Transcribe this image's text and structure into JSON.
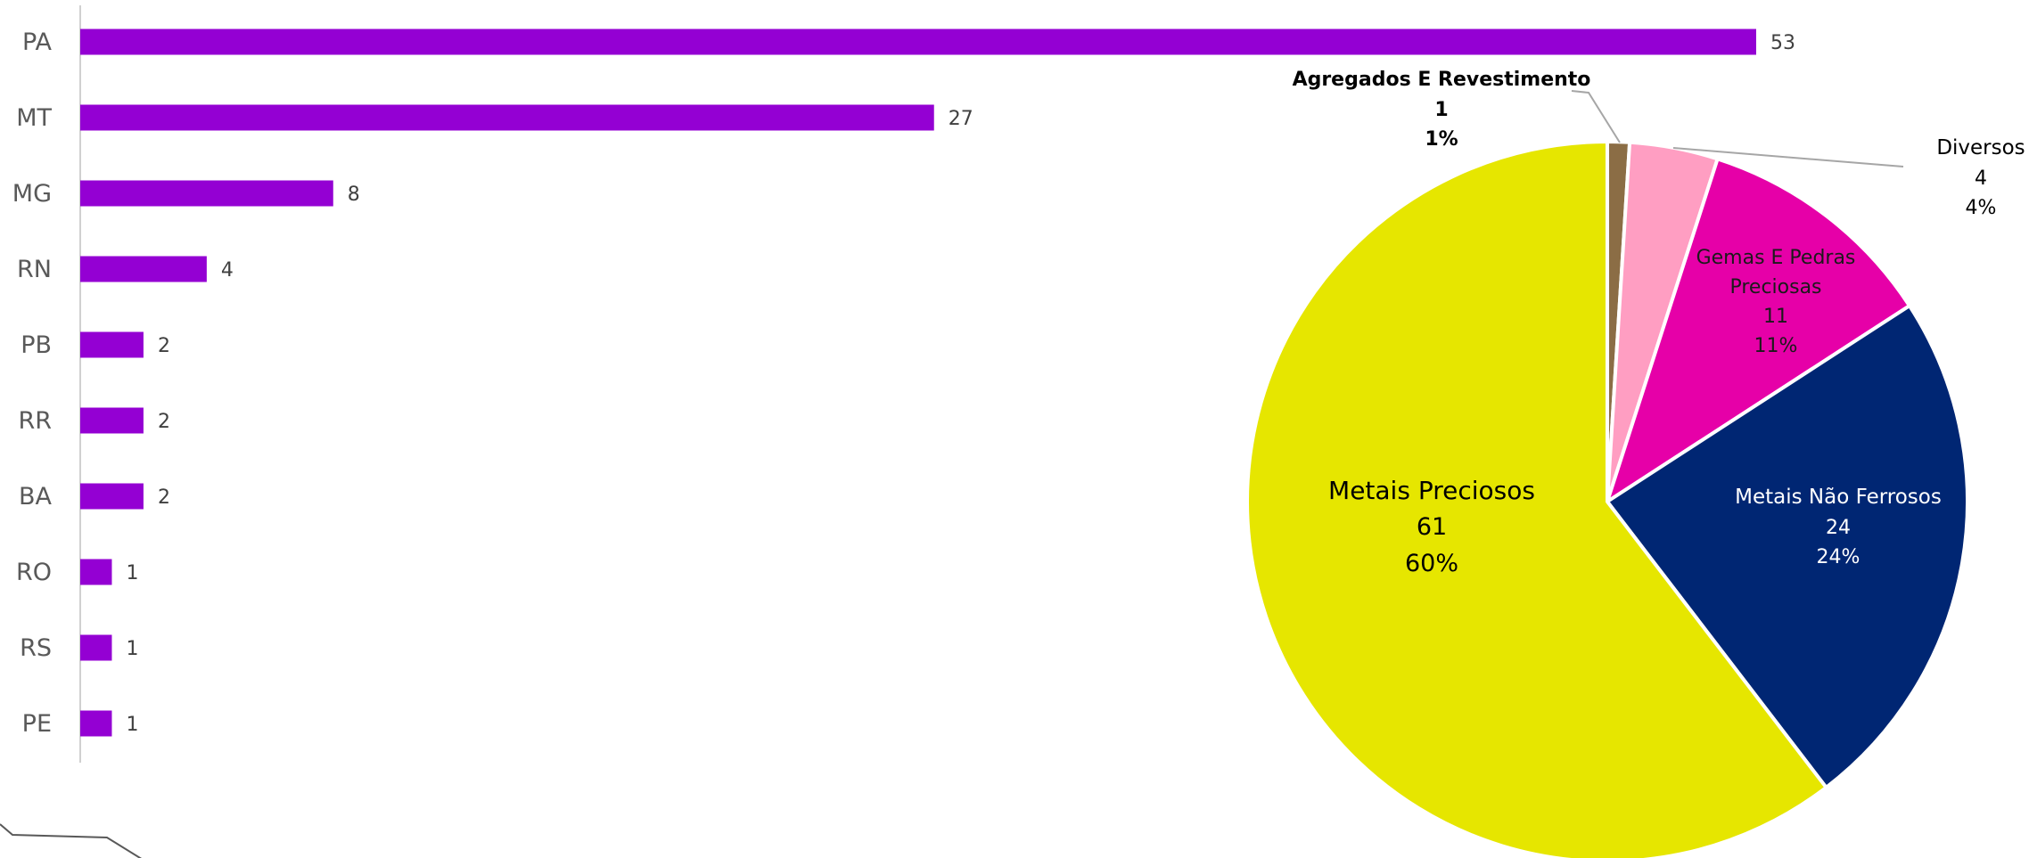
{
  "chart_data": [
    {
      "type": "bar",
      "orientation": "horizontal",
      "categories": [
        "PA",
        "MT",
        "MG",
        "RN",
        "PB",
        "RR",
        "BA",
        "RO",
        "RS",
        "PE"
      ],
      "values": [
        53,
        27,
        8,
        4,
        2,
        2,
        2,
        1,
        1,
        1
      ],
      "value_labels": [
        "53",
        "27",
        "8",
        "4",
        "2",
        "2",
        "2",
        "1",
        "1",
        "1"
      ],
      "title": "",
      "xlabel": "",
      "ylabel": "",
      "xlim": [
        0,
        53
      ],
      "grid": false,
      "color": "#9400D3"
    },
    {
      "type": "pie",
      "slices": [
        {
          "label": "Agregados E Revestimento",
          "value": 1,
          "value_label": "1",
          "percent_label": "1%",
          "color": "#8B6D45",
          "text_color": "#000000",
          "bold": true
        },
        {
          "label": "Diversos",
          "value": 4,
          "value_label": "4",
          "percent_label": "4%",
          "color": "#FF9EC2",
          "text_color": "#000000",
          "bold": false
        },
        {
          "label": "Gemas E Pedras Preciosas",
          "value": 11,
          "value_label": "11",
          "percent_label": "11%",
          "color": "#E600A8",
          "text_color": "#1a1a1a",
          "bold": false
        },
        {
          "label": "Metais Não Ferrosos",
          "value": 24,
          "value_label": "24",
          "percent_label": "24%",
          "color": "#002673",
          "text_color": "#ffffff",
          "bold": false
        },
        {
          "label": "Metais Preciosos",
          "value": 61,
          "value_label": "61",
          "percent_label": "60%",
          "color": "#E6E600",
          "text_color": "#000000",
          "bold": false
        }
      ],
      "title": "",
      "legend": "none"
    }
  ]
}
